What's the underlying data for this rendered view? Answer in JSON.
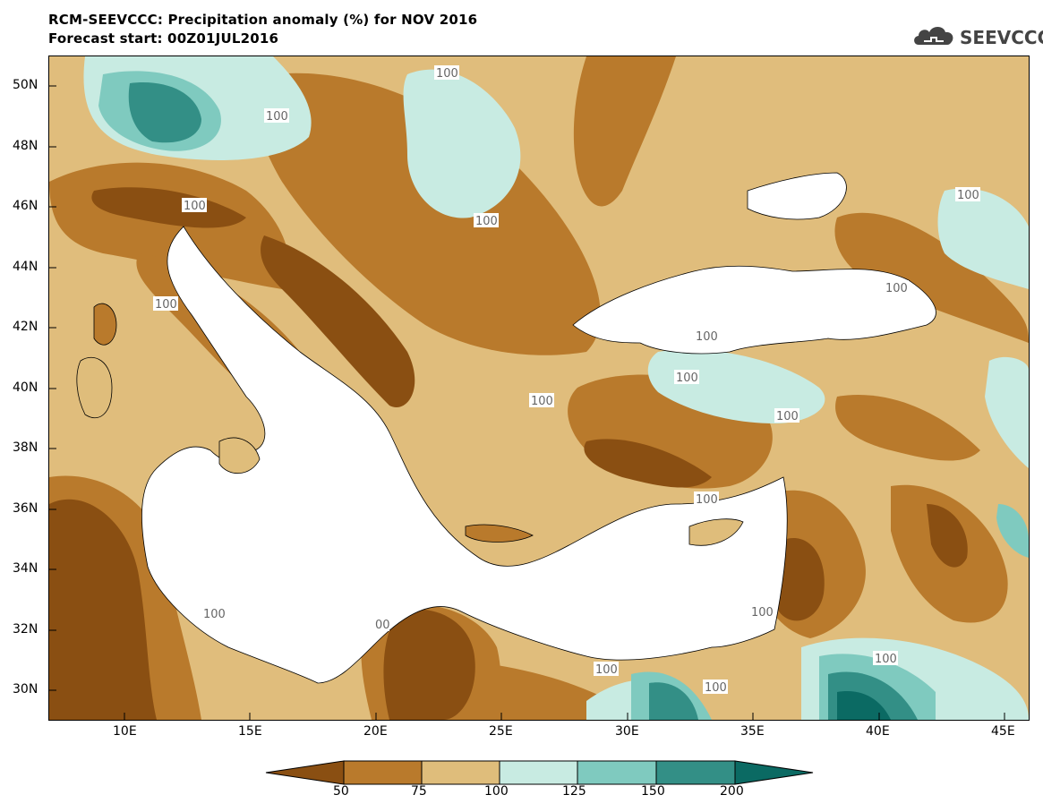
{
  "header": {
    "title_line1": "RCM-SEEVCCC: Precipitation anomaly (%) for NOV 2016",
    "title_line2": "Forecast start: 00Z01JUL2016",
    "logo_text": "SEEVCCC"
  },
  "map": {
    "lat_ticks": [
      "50N",
      "48N",
      "46N",
      "44N",
      "42N",
      "40N",
      "38N",
      "36N",
      "34N",
      "32N",
      "30N"
    ],
    "lon_ticks": [
      "10E",
      "15E",
      "20E",
      "25E",
      "30E",
      "35E",
      "40E",
      "45E"
    ],
    "contour_labels": [
      "100",
      "100",
      "100",
      "100",
      "100",
      "100",
      "100",
      "100",
      "100",
      "100",
      "100",
      "100",
      "100",
      "100",
      "100",
      "00",
      "100",
      "100"
    ]
  },
  "colorbar": {
    "levels": [
      "50",
      "75",
      "100",
      "125",
      "150",
      "200"
    ],
    "colors": [
      "#8a4f12",
      "#b97a2c",
      "#dfbd7b",
      "#c8ebe2",
      "#7fcabf",
      "#338f86",
      "#0b6a63"
    ]
  },
  "palette": {
    "below_50": "#8a4f12",
    "50_75": "#b97a2c",
    "75_100": "#dfbd7b",
    "100_125": "#c8ebe2",
    "125_150": "#7fcabf",
    "150_200": "#338f86",
    "above_200": "#0b6a63"
  }
}
